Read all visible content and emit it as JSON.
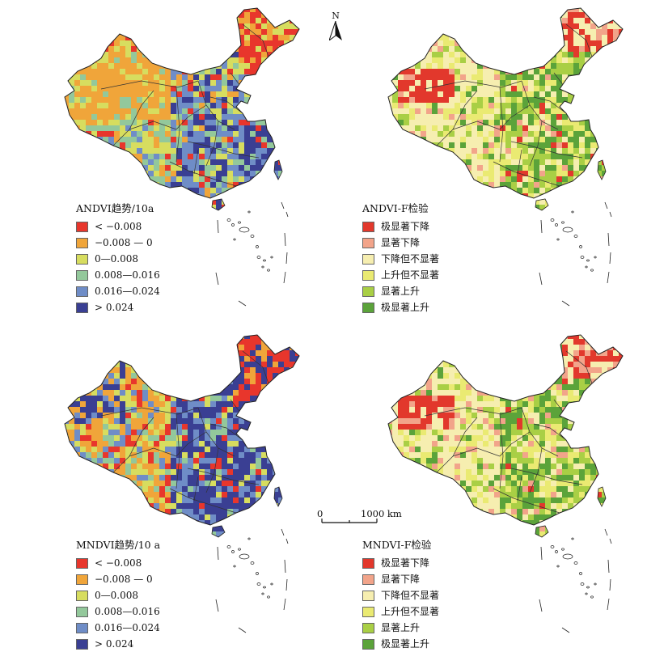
{
  "north_label": "N",
  "scale": {
    "start": "0",
    "end": "1000 km"
  },
  "panels": [
    {
      "legend_title": "ANDVI趋势/10a",
      "palette": [
        "#e8362c",
        "#f0a53a",
        "#d7dd5f",
        "#93c89b",
        "#6f8dc7",
        "#3a3f93"
      ],
      "items": [
        "< −0.008",
        "−0.008 — 0",
        "0—0.008",
        "0.008—0.016",
        "0.016—0.024",
        "> 0.024"
      ]
    },
    {
      "legend_title": "ANDVI-F检验",
      "palette": [
        "#e2382c",
        "#f2a48a",
        "#f6eeb0",
        "#eaea72",
        "#a9cf45",
        "#5ba33a"
      ],
      "items": [
        "极显著下降",
        "显著下降",
        "下降但不显著",
        "上升但不显著",
        "显著上升",
        "极显著上升"
      ]
    },
    {
      "legend_title": "MNDVI趋势/10 a",
      "palette": [
        "#e8362c",
        "#f0a53a",
        "#d7dd5f",
        "#93c89b",
        "#6f8dc7",
        "#3a3f93"
      ],
      "items": [
        "< −0.008",
        "−0.008 — 0",
        "0—0.008",
        "0.008—0.016",
        "0.016—0.024",
        "> 0.024"
      ]
    },
    {
      "legend_title": "MNDVI-F检验",
      "palette": [
        "#e2382c",
        "#f2a48a",
        "#f6eeb0",
        "#eaea72",
        "#a9cf45",
        "#5ba33a"
      ],
      "items": [
        "极显著下降",
        "显著下降",
        "下降但不显著",
        "上升但不显著",
        "显著上升",
        "极显著上升"
      ]
    }
  ]
}
